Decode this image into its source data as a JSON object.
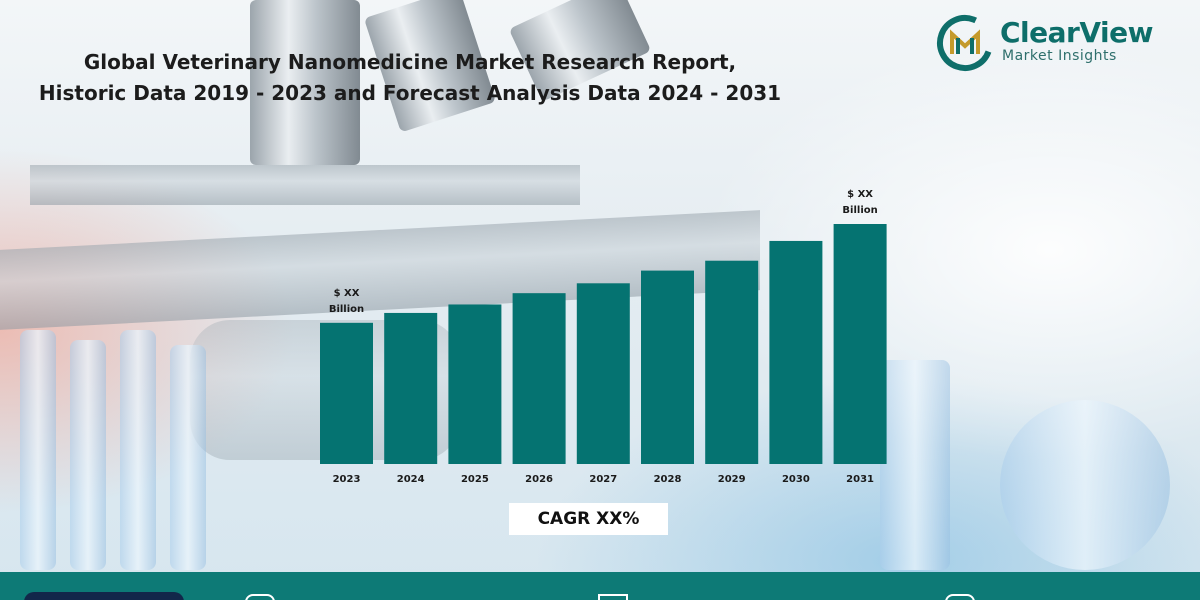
{
  "title_line1": "Global Veterinary Nanomedicine Market Research Report,",
  "title_line2": "Historic Data 2019 - 2023 and Forecast Analysis Data 2024 - 2031",
  "logo": {
    "name": "ClearView",
    "tagline": "Market Insights",
    "icon": "clearview-logo-icon"
  },
  "cagr_label": "CAGR XX%",
  "colors": {
    "bar": "#057371",
    "logo_teal": "#0e6e6a",
    "footer": "#0d7a76",
    "footer_pill": "#12274a"
  },
  "footer_icons": [
    "globe-icon",
    "mail-icon",
    "phone-icon"
  ],
  "chart_data": {
    "type": "bar",
    "categories": [
      "2023",
      "2024",
      "2025",
      "2026",
      "2027",
      "2028",
      "2029",
      "2030",
      "2031"
    ],
    "values": [
      100,
      107,
      113,
      121,
      128,
      137,
      144,
      158,
      170
    ],
    "value_note": "relative heights only; no y-axis printed",
    "ylim": [
      0,
      170
    ],
    "data_labels": [
      {
        "category": "2023",
        "line1": "$ XX",
        "line2": "Billion"
      },
      {
        "category": "2031",
        "line1": "$ XX",
        "line2": "Billion"
      }
    ],
    "grid": false,
    "legend": "none"
  }
}
